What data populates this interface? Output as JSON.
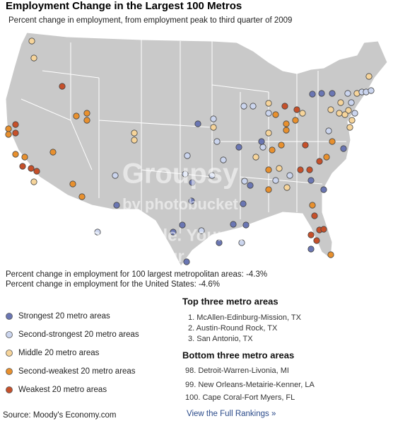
{
  "header": {
    "title": "Employment Change in the Largest 100 Metros",
    "subtitle": "Percent change in employment, from employment peak to third quarter of 2009"
  },
  "stats": [
    "Percent change in employment for 100 largest metropolitan areas: -4.3%",
    "Percent change in employment for the United States: -4.6%"
  ],
  "legend": [
    {
      "label": "Strongest 20 metro areas",
      "color": "#6a76b3"
    },
    {
      "label": "Second-strongest 20 metro areas",
      "color": "#cbd5ee"
    },
    {
      "label": "Middle 20 metro areas",
      "color": "#f6d49a"
    },
    {
      "label": "Second-weakest 20 metro areas",
      "color": "#e8902e"
    },
    {
      "label": "Weakest 20 metro areas",
      "color": "#c6502a"
    }
  ],
  "top_three": {
    "title": "Top three metro areas",
    "items": [
      "1. McAllen-Edinburg-Mission, TX",
      "2. Austin-Round Rock, TX",
      "3. San Antonio, TX"
    ]
  },
  "bottom_three": {
    "title": "Bottom three metro areas",
    "items": [
      "98. Detroit-Warren-Livonia, MI",
      "99. New Orleans-Metairie-Kenner, LA",
      "100. Cape Coral-Fort Myers, FL"
    ]
  },
  "source": "Source: Moody's Economy.com",
  "link": "View the Full Rankings »",
  "watermark": [
    "Groupsy",
    "by photobucket",
    "Your people. Your moments.",
    "Your space."
  ]
}
